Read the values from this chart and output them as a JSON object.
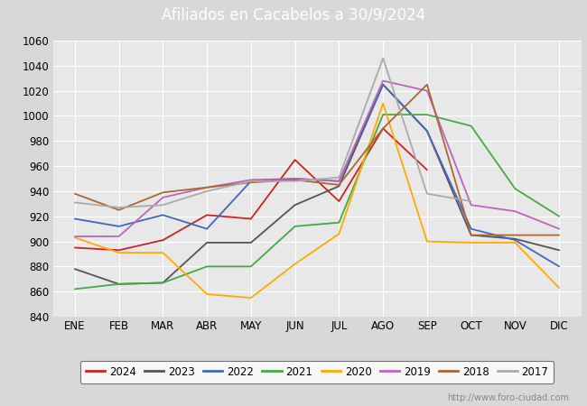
{
  "title": "Afiliados en Cacabelos a 30/9/2024",
  "title_color": "#ffffff",
  "title_bg_color": "#4d7ebf",
  "ylim": [
    840,
    1060
  ],
  "yticks": [
    840,
    860,
    880,
    900,
    920,
    940,
    960,
    980,
    1000,
    1020,
    1040,
    1060
  ],
  "months": [
    "ENE",
    "FEB",
    "MAR",
    "ABR",
    "MAY",
    "JUN",
    "JUL",
    "AGO",
    "SEP",
    "OCT",
    "NOV",
    "DIC"
  ],
  "watermark": "http://www.foro-ciudad.com",
  "outer_bg_color": "#d8d8d8",
  "plot_bg_color": "#e8e8e8",
  "grid_color": "#ffffff",
  "series": [
    {
      "label": "2024",
      "color": "#cc2222",
      "data": [
        895,
        893,
        901,
        921,
        918,
        965,
        932,
        990,
        957,
        null,
        null,
        null
      ]
    },
    {
      "label": "2023",
      "color": "#555555",
      "data": [
        878,
        866,
        867,
        899,
        899,
        929,
        944,
        1025,
        988,
        905,
        902,
        893
      ]
    },
    {
      "label": "2022",
      "color": "#4466bb",
      "data": [
        918,
        912,
        921,
        910,
        948,
        950,
        948,
        1025,
        988,
        910,
        901,
        880
      ]
    },
    {
      "label": "2021",
      "color": "#44aa44",
      "data": [
        862,
        866,
        867,
        880,
        880,
        912,
        915,
        1001,
        1001,
        992,
        942,
        920
      ]
    },
    {
      "label": "2020",
      "color": "#ffaa00",
      "data": [
        903,
        891,
        891,
        858,
        855,
        882,
        906,
        1010,
        900,
        899,
        899,
        863
      ]
    },
    {
      "label": "2019",
      "color": "#bb66bb",
      "data": [
        904,
        904,
        935,
        943,
        949,
        950,
        948,
        1028,
        1020,
        929,
        924,
        910
      ]
    },
    {
      "label": "2018",
      "color": "#aa6633",
      "data": [
        938,
        925,
        939,
        943,
        947,
        949,
        945,
        990,
        1025,
        905,
        905,
        905
      ]
    },
    {
      "label": "2017",
      "color": "#aaaaaa",
      "data": [
        931,
        927,
        929,
        940,
        948,
        948,
        951,
        1046,
        938,
        932,
        null,
        null
      ]
    }
  ]
}
